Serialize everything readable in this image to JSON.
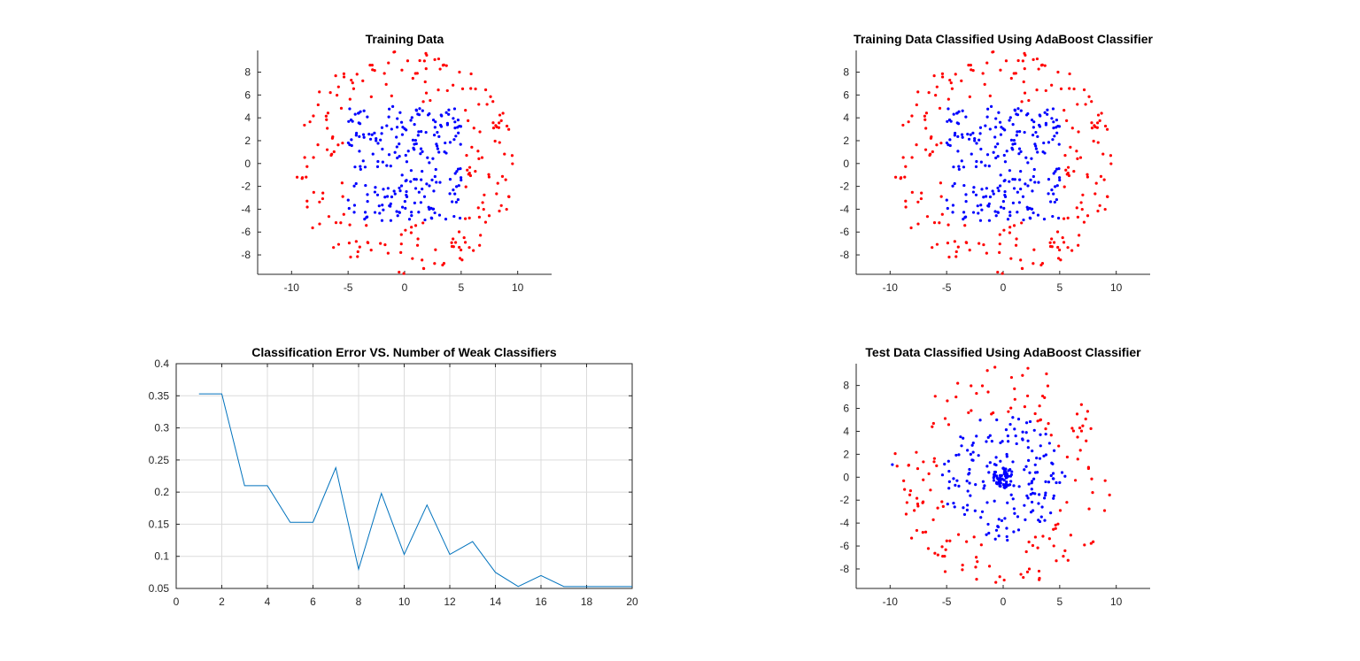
{
  "colors": {
    "class_pos": "#ff0000",
    "class_neg": "#0000ff",
    "line": "#0072bd",
    "axis": "#262626",
    "grid": "#dcdcdc"
  },
  "chart_data": [
    {
      "id": "training",
      "type": "scatter",
      "title": "Training Data",
      "xlabel": "",
      "ylabel": "",
      "xlim": [
        -13,
        13
      ],
      "ylim": [
        -9.7,
        9.9
      ],
      "xticks": [
        -10,
        -5,
        0,
        5,
        10
      ],
      "yticks": [
        -8,
        -6,
        -4,
        -2,
        0,
        2,
        4,
        6,
        8
      ],
      "grid": false,
      "series": [
        {
          "color": "#0000ff",
          "points": []
        },
        {
          "color": "#ff0000",
          "points": []
        }
      ]
    },
    {
      "id": "training-classified",
      "type": "scatter",
      "title": "Training Data Classified Using AdaBoost Classifier",
      "xlabel": "",
      "ylabel": "",
      "xlim": [
        -13,
        13
      ],
      "ylim": [
        -9.7,
        9.9
      ],
      "xticks": [
        -10,
        -5,
        0,
        5,
        10
      ],
      "yticks": [
        -8,
        -6,
        -4,
        -2,
        0,
        2,
        4,
        6,
        8
      ],
      "grid": false,
      "series": [
        {
          "color": "#0000ff",
          "points": []
        },
        {
          "color": "#ff0000",
          "points": []
        }
      ]
    },
    {
      "id": "error-curve",
      "type": "line",
      "title": "Classification Error VS. Number of Weak Classifiers",
      "xlabel": "",
      "ylabel": "",
      "xlim": [
        0,
        20
      ],
      "ylim": [
        0.05,
        0.4
      ],
      "xticks": [
        0,
        2,
        4,
        6,
        8,
        10,
        12,
        14,
        16,
        18,
        20
      ],
      "yticks": [
        0.05,
        0.1,
        0.15,
        0.2,
        0.25,
        0.3,
        0.35,
        0.4
      ],
      "ytick_labels": [
        "0.05",
        "0.1",
        "0.15",
        "0.2",
        "0.25",
        "0.3",
        "0.35",
        "0.4"
      ],
      "grid": true,
      "series": [
        {
          "color": "#0072bd",
          "x": [
            1,
            2,
            3,
            4,
            5,
            6,
            7,
            8,
            9,
            10,
            11,
            12,
            13,
            14,
            15,
            16,
            17,
            18,
            19,
            20
          ],
          "values": [
            0.353,
            0.353,
            0.21,
            0.21,
            0.153,
            0.153,
            0.238,
            0.08,
            0.198,
            0.103,
            0.18,
            0.103,
            0.123,
            0.075,
            0.053,
            0.07,
            0.053,
            0.053,
            0.053,
            0.053
          ]
        }
      ]
    },
    {
      "id": "test-classified",
      "type": "scatter",
      "title": "Test Data Classified Using AdaBoost Classifier",
      "xlabel": "",
      "ylabel": "",
      "xlim": [
        -13,
        13
      ],
      "ylim": [
        -9.7,
        9.9
      ],
      "xticks": [
        -10,
        -5,
        0,
        5,
        10
      ],
      "yticks": [
        -8,
        -6,
        -4,
        -2,
        0,
        2,
        4,
        6,
        8
      ],
      "grid": false,
      "series": [
        {
          "color": "#0000ff",
          "points": []
        },
        {
          "color": "#ff0000",
          "points": []
        }
      ]
    }
  ]
}
